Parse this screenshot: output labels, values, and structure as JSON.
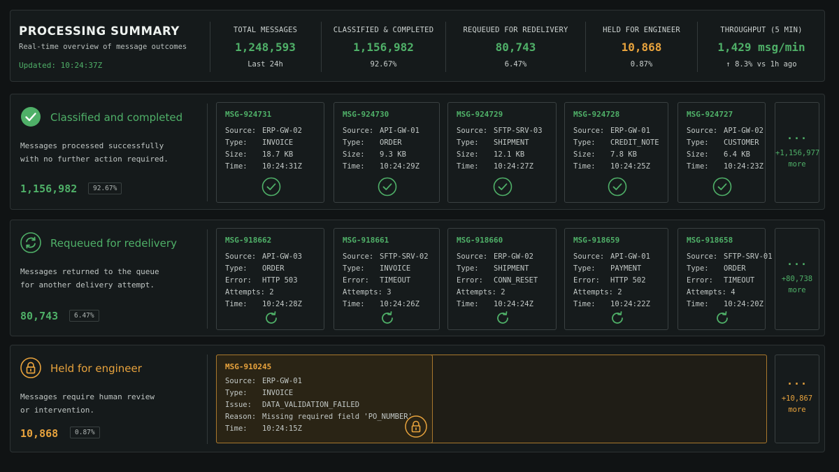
{
  "header": {
    "title": "PROCESSING SUMMARY",
    "subtitle": "Real-time overview of message outcomes",
    "updated": "Updated: 10:24:37Z",
    "metrics": [
      {
        "label": "TOTAL MESSAGES",
        "value": "1,248,593",
        "sub": "Last 24h",
        "color": "#4fb068"
      },
      {
        "label": "CLASSIFIED & COMPLETED",
        "value": "1,156,982",
        "sub": "92.67%",
        "color": "#4fb068"
      },
      {
        "label": "REQUEUED FOR REDELIVERY",
        "value": "80,743",
        "sub": "6.47%",
        "color": "#4fb068"
      },
      {
        "label": "HELD FOR ENGINEER",
        "value": "10,868",
        "sub": "0.87%",
        "color": "#e8a33d"
      },
      {
        "label": "THROUGHPUT (5 MIN)",
        "value": "1,429 msg/min",
        "sub": "↑ 8.3% vs 1h ago",
        "color": "#4fb068"
      }
    ]
  },
  "colors": {
    "accent_green": "#4fb068",
    "accent_amber": "#e8a33d",
    "background": "#101314"
  },
  "completed": {
    "title": "Classified and completed",
    "icon": "check-circle-icon",
    "desc_line1": "Messages processed successfully",
    "desc_line2": "with no further action required.",
    "count": "1,156,982",
    "pct": "92.67%",
    "cards": [
      {
        "id": "MSG-924731",
        "source": "ERP-GW-02",
        "type": "INVOICE",
        "size": "18.7 KB",
        "time": "10:24:31Z"
      },
      {
        "id": "MSG-924730",
        "source": "API-GW-01",
        "type": "ORDER",
        "size": "9.3 KB",
        "time": "10:24:29Z"
      },
      {
        "id": "MSG-924729",
        "source": "SFTP-SRV-03",
        "type": "SHIPMENT",
        "size": "12.1 KB",
        "time": "10:24:27Z"
      },
      {
        "id": "MSG-924728",
        "source": "ERP-GW-01",
        "type": "CREDIT_NOTE",
        "size": "7.8 KB",
        "time": "10:24:25Z"
      },
      {
        "id": "MSG-924727",
        "source": "API-GW-02",
        "type": "CUSTOMER",
        "size": "6.4 KB",
        "time": "10:24:23Z"
      }
    ],
    "more_dots": "...",
    "more_count": "+1,156,977",
    "more_label": "more"
  },
  "requeued": {
    "title": "Requeued for redelivery",
    "icon": "refresh-icon",
    "desc_line1": "Messages returned to the queue",
    "desc_line2": "for another delivery attempt.",
    "count": "80,743",
    "pct": "6.47%",
    "cards": [
      {
        "id": "MSG-918662",
        "source": "API-GW-03",
        "type": "ORDER",
        "error": "HTTP 503",
        "attempts": "2",
        "time": "10:24:28Z"
      },
      {
        "id": "MSG-918661",
        "source": "SFTP-SRV-02",
        "type": "INVOICE",
        "error": "TIMEOUT",
        "attempts": "3",
        "time": "10:24:26Z"
      },
      {
        "id": "MSG-918660",
        "source": "ERP-GW-02",
        "type": "SHIPMENT",
        "error": "CONN_RESET",
        "attempts": "2",
        "time": "10:24:24Z"
      },
      {
        "id": "MSG-918659",
        "source": "API-GW-01",
        "type": "PAYMENT",
        "error": "HTTP 502",
        "attempts": "2",
        "time": "10:24:22Z"
      },
      {
        "id": "MSG-918658",
        "source": "SFTP-SRV-01",
        "type": "ORDER",
        "error": "TIMEOUT",
        "attempts": "4",
        "time": "10:24:20Z"
      }
    ],
    "more_dots": "...",
    "more_count": "+80,738",
    "more_label": "more"
  },
  "held": {
    "title": "Held for engineer",
    "icon": "lock-icon",
    "desc_line1": "Messages require human review",
    "desc_line2": "or intervention.",
    "count": "10,868",
    "pct": "0.87%",
    "card": {
      "id": "MSG-910245",
      "source": "ERP-GW-01",
      "type": "INVOICE",
      "issue": "DATA_VALIDATION_FAILED",
      "reason": "Missing required field 'PO_NUMBER'",
      "time": "10:24:15Z"
    },
    "more_dots": "...",
    "more_count": "+10,867",
    "more_label": "more"
  },
  "labels": {
    "source": "Source:",
    "type": "Type:",
    "size": "Size:",
    "time": "Time:",
    "error": "Error:",
    "attempts": "Attempts:",
    "issue": "Issue:",
    "reason": "Reason:"
  }
}
